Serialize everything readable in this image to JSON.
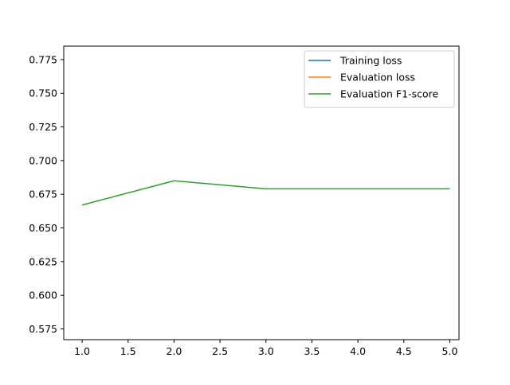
{
  "chart_data": {
    "type": "line",
    "title": "",
    "xlabel": "",
    "ylabel": "",
    "xlim": [
      0.8,
      5.1
    ],
    "ylim": [
      0.567,
      0.785
    ],
    "xticks": [
      1.0,
      1.5,
      2.0,
      2.5,
      3.0,
      3.5,
      4.0,
      4.5,
      5.0
    ],
    "xtick_labels": [
      "1.0",
      "1.5",
      "2.0",
      "2.5",
      "3.0",
      "3.5",
      "4.0",
      "4.5",
      "5.0"
    ],
    "yticks": [
      0.575,
      0.6,
      0.625,
      0.65,
      0.675,
      0.7,
      0.725,
      0.75,
      0.775
    ],
    "ytick_labels": [
      "0.575",
      "0.600",
      "0.625",
      "0.650",
      "0.675",
      "0.700",
      "0.725",
      "0.750",
      "0.775"
    ],
    "grid": false,
    "legend_position": "top-right",
    "series": [
      {
        "name": "Training loss",
        "color": "#1f77b4",
        "x": [],
        "y": []
      },
      {
        "name": "Evaluation loss",
        "color": "#ff7f0e",
        "x": [],
        "y": []
      },
      {
        "name": "Evaluation F1-score",
        "color": "#2ca02c",
        "x": [
          1,
          2,
          3,
          4,
          5
        ],
        "y": [
          0.667,
          0.685,
          0.679,
          0.679,
          0.679
        ]
      }
    ]
  }
}
